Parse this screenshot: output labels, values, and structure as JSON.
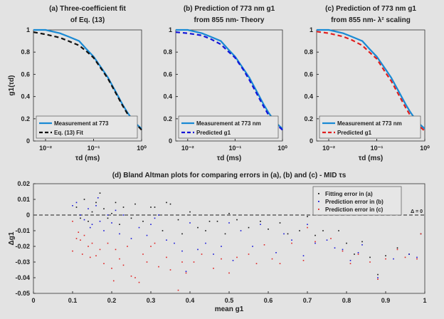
{
  "colors": {
    "measurement": "#1a8ad4",
    "fit": "#111111",
    "predicted_b": "#1414d8",
    "predicted_c": "#e02020",
    "zero_line": "#444444"
  },
  "chart_data": [
    {
      "type": "line",
      "title": [
        "(a) Three-coefficient fit",
        "of Eq. (13)"
      ],
      "xlabel": "τd (ms)",
      "ylabel": "g1(τd)",
      "xscale": "log",
      "xlim": [
        0.0056,
        1
      ],
      "ylim": [
        0,
        1
      ],
      "xticks": [
        {
          "v": 0.01,
          "label": "10⁻²"
        },
        {
          "v": 0.1,
          "label": "10⁻¹"
        },
        {
          "v": 1,
          "label": "10⁰"
        }
      ],
      "yticks": [
        {
          "v": 0,
          "label": "0"
        },
        {
          "v": 0.2,
          "label": "0.2"
        },
        {
          "v": 0.4,
          "label": "0.4"
        },
        {
          "v": 0.6,
          "label": "0.6"
        },
        {
          "v": 0.8,
          "label": "0.8"
        },
        {
          "v": 1,
          "label": "1"
        }
      ],
      "legend": "bottom-left",
      "x": [
        0.0056,
        0.01,
        0.02,
        0.03,
        0.05,
        0.07,
        0.1,
        0.15,
        0.2,
        0.3,
        0.4,
        0.5,
        0.7,
        1
      ],
      "series": [
        {
          "name": "Measurement at 773",
          "style": "solid",
          "color": "#1a8ad4",
          "values": [
            1,
            1,
            0.97,
            0.94,
            0.9,
            0.83,
            0.76,
            0.65,
            0.57,
            0.43,
            0.33,
            0.26,
            0.17,
            0.11
          ]
        },
        {
          "name": "Eq. (13) Fit",
          "style": "dashed",
          "color": "#111111",
          "values": [
            0.98,
            0.96,
            0.93,
            0.9,
            0.86,
            0.81,
            0.75,
            0.64,
            0.56,
            0.42,
            0.32,
            0.25,
            0.17,
            0.1
          ]
        }
      ]
    },
    {
      "type": "line",
      "title": [
        "(b) Prediction of 773 nm g1",
        "from 855 nm- Theory"
      ],
      "xlabel": "τd (ms)",
      "ylabel": "",
      "xscale": "log",
      "xlim": [
        0.0056,
        1
      ],
      "ylim": [
        0,
        1
      ],
      "xticks": [
        {
          "v": 0.01,
          "label": "10⁻²"
        },
        {
          "v": 0.1,
          "label": "10⁻¹"
        },
        {
          "v": 1,
          "label": "10⁰"
        }
      ],
      "yticks": [
        {
          "v": 0,
          "label": "0"
        },
        {
          "v": 0.2,
          "label": "0.2"
        },
        {
          "v": 0.4,
          "label": "0.4"
        },
        {
          "v": 0.6,
          "label": "0.6"
        },
        {
          "v": 0.8,
          "label": "0.8"
        },
        {
          "v": 1,
          "label": "1"
        }
      ],
      "legend": "bottom-left",
      "x": [
        0.0056,
        0.01,
        0.02,
        0.03,
        0.05,
        0.07,
        0.1,
        0.15,
        0.2,
        0.3,
        0.4,
        0.5,
        0.7,
        1
      ],
      "series": [
        {
          "name": "Measurement at 773 nm",
          "style": "solid",
          "color": "#1a8ad4",
          "values": [
            1,
            1,
            0.97,
            0.94,
            0.9,
            0.83,
            0.76,
            0.65,
            0.57,
            0.43,
            0.33,
            0.26,
            0.17,
            0.11
          ]
        },
        {
          "name": "Predicted g1",
          "style": "dashed",
          "color": "#1414d8",
          "values": [
            0.98,
            0.97,
            0.95,
            0.92,
            0.87,
            0.81,
            0.75,
            0.64,
            0.55,
            0.41,
            0.31,
            0.24,
            0.16,
            0.1
          ]
        }
      ]
    },
    {
      "type": "line",
      "title": [
        "(c) Prediction of 773 nm g1",
        "from 855 nm- λ² scaling"
      ],
      "xlabel": "τd (ms)",
      "ylabel": "",
      "xscale": "log",
      "xlim": [
        0.0056,
        1
      ],
      "ylim": [
        0,
        1
      ],
      "xticks": [
        {
          "v": 0.01,
          "label": "10⁻²"
        },
        {
          "v": 0.1,
          "label": "10⁻¹"
        },
        {
          "v": 1,
          "label": "10⁰"
        }
      ],
      "yticks": [
        {
          "v": 0,
          "label": "0"
        },
        {
          "v": 0.2,
          "label": "0.2"
        },
        {
          "v": 0.4,
          "label": "0.4"
        },
        {
          "v": 0.6,
          "label": "0.6"
        },
        {
          "v": 0.8,
          "label": "0.8"
        },
        {
          "v": 1,
          "label": "1"
        }
      ],
      "legend": "bottom-left",
      "x": [
        0.0056,
        0.01,
        0.02,
        0.03,
        0.05,
        0.07,
        0.1,
        0.15,
        0.2,
        0.3,
        0.4,
        0.5,
        0.7,
        1
      ],
      "series": [
        {
          "name": "Measurement at 773 nm",
          "style": "solid",
          "color": "#1a8ad4",
          "values": [
            1,
            1,
            0.97,
            0.94,
            0.9,
            0.83,
            0.76,
            0.65,
            0.57,
            0.43,
            0.33,
            0.26,
            0.17,
            0.11
          ]
        },
        {
          "name": "Predicted g1",
          "style": "dashed",
          "color": "#e02020",
          "values": [
            0.985,
            0.97,
            0.94,
            0.91,
            0.86,
            0.8,
            0.74,
            0.62,
            0.54,
            0.4,
            0.3,
            0.23,
            0.15,
            0.09
          ]
        }
      ]
    },
    {
      "type": "scatter",
      "title": [
        "(d) Bland Altman plots for comparing errors in (a), (b) and (c) - MID τs"
      ],
      "xlabel": "mean g1",
      "ylabel": "Δg1",
      "xlim": [
        0,
        1
      ],
      "ylim": [
        -0.05,
        0.02
      ],
      "xticks": [
        {
          "v": 0,
          "label": "0"
        },
        {
          "v": 0.1,
          "label": "0.1"
        },
        {
          "v": 0.2,
          "label": "0.2"
        },
        {
          "v": 0.3,
          "label": "0.3"
        },
        {
          "v": 0.4,
          "label": "0.4"
        },
        {
          "v": 0.5,
          "label": "0.5"
        },
        {
          "v": 0.6,
          "label": "0.6"
        },
        {
          "v": 0.7,
          "label": "0.7"
        },
        {
          "v": 0.8,
          "label": "0.8"
        },
        {
          "v": 0.9,
          "label": "0.9"
        },
        {
          "v": 1,
          "label": "1"
        }
      ],
      "yticks": [
        {
          "v": -0.05,
          "label": "-0.05"
        },
        {
          "v": -0.04,
          "label": "-0.04"
        },
        {
          "v": -0.03,
          "label": "-0.03"
        },
        {
          "v": -0.02,
          "label": "-0.02"
        },
        {
          "v": -0.01,
          "label": "-0.01"
        },
        {
          "v": 0,
          "label": "0"
        },
        {
          "v": 0.01,
          "label": "0.01"
        },
        {
          "v": 0.02,
          "label": "0.02"
        }
      ],
      "legend": "top-right",
      "reference_line": {
        "y": 0,
        "label": "Δ = 0"
      },
      "series": [
        {
          "name": "Fitting error in (a)",
          "color": "#111111",
          "points": [
            [
              0.11,
              0.005
            ],
            [
              0.12,
              -0.002
            ],
            [
              0.13,
              0.01
            ],
            [
              0.14,
              -0.004
            ],
            [
              0.15,
              0.002
            ],
            [
              0.16,
              0.008
            ],
            [
              0.17,
              0.014
            ],
            [
              0.18,
              0.004
            ],
            [
              0.19,
              -0.002
            ],
            [
              0.2,
              0.001
            ],
            [
              0.21,
              0.008
            ],
            [
              0.22,
              -0.006
            ],
            [
              0.23,
              0.005
            ],
            [
              0.25,
              -0.002
            ],
            [
              0.26,
              0.007
            ],
            [
              0.28,
              -0.004
            ],
            [
              0.3,
              0.005
            ],
            [
              0.31,
              0.005
            ],
            [
              0.33,
              -0.01
            ],
            [
              0.34,
              0.008
            ],
            [
              0.35,
              0.007
            ],
            [
              0.37,
              -0.003
            ],
            [
              0.38,
              -0.012
            ],
            [
              0.4,
              0.002
            ],
            [
              0.42,
              -0.008
            ],
            [
              0.44,
              -0.01
            ],
            [
              0.45,
              -0.004
            ],
            [
              0.47,
              -0.004
            ],
            [
              0.49,
              -0.012
            ],
            [
              0.5,
              0.001
            ],
            [
              0.52,
              -0.003
            ],
            [
              0.55,
              -0.008
            ],
            [
              0.58,
              -0.004
            ],
            [
              0.6,
              -0.009
            ],
            [
              0.63,
              -0.005
            ],
            [
              0.65,
              -0.012
            ],
            [
              0.68,
              -0.01
            ],
            [
              0.7,
              -0.001
            ],
            [
              0.72,
              -0.013
            ],
            [
              0.74,
              -0.01
            ],
            [
              0.78,
              -0.01
            ],
            [
              0.8,
              -0.018
            ],
            [
              0.82,
              -0.025
            ],
            [
              0.84,
              -0.017
            ],
            [
              0.86,
              -0.027
            ],
            [
              0.88,
              -0.038
            ],
            [
              0.9,
              -0.026
            ],
            [
              0.93,
              -0.021
            ],
            [
              0.96,
              -0.025
            ],
            [
              0.99,
              -0.012
            ]
          ]
        },
        {
          "name": "Prediction error in (b)",
          "color": "#1414d8",
          "points": [
            [
              0.1,
              0.006
            ],
            [
              0.11,
              0.008
            ],
            [
              0.12,
              0.0
            ],
            [
              0.13,
              -0.003
            ],
            [
              0.14,
              0.004
            ],
            [
              0.145,
              -0.008
            ],
            [
              0.15,
              -0.006
            ],
            [
              0.16,
              0.006
            ],
            [
              0.165,
              0.011
            ],
            [
              0.17,
              -0.004
            ],
            [
              0.18,
              -0.01
            ],
            [
              0.19,
              0.0
            ],
            [
              0.2,
              -0.005
            ],
            [
              0.21,
              0.003
            ],
            [
              0.22,
              -0.012
            ],
            [
              0.23,
              0.0
            ],
            [
              0.25,
              -0.015
            ],
            [
              0.27,
              -0.008
            ],
            [
              0.29,
              -0.013
            ],
            [
              0.3,
              -0.006
            ],
            [
              0.31,
              -0.002
            ],
            [
              0.32,
              0.0
            ],
            [
              0.34,
              -0.016
            ],
            [
              0.36,
              -0.018
            ],
            [
              0.38,
              -0.023
            ],
            [
              0.39,
              -0.036
            ],
            [
              0.4,
              -0.005
            ],
            [
              0.42,
              -0.022
            ],
            [
              0.44,
              -0.018
            ],
            [
              0.46,
              -0.025
            ],
            [
              0.48,
              -0.02
            ],
            [
              0.5,
              -0.005
            ],
            [
              0.51,
              -0.029
            ],
            [
              0.53,
              -0.01
            ],
            [
              0.56,
              -0.02
            ],
            [
              0.58,
              -0.006
            ],
            [
              0.62,
              -0.024
            ],
            [
              0.64,
              -0.012
            ],
            [
              0.66,
              -0.016
            ],
            [
              0.69,
              -0.026
            ],
            [
              0.7,
              -0.006
            ],
            [
              0.72,
              -0.018
            ],
            [
              0.75,
              -0.016
            ],
            [
              0.77,
              -0.021
            ],
            [
              0.79,
              -0.022
            ],
            [
              0.81,
              -0.029
            ],
            [
              0.83,
              -0.024
            ],
            [
              0.84,
              -0.019
            ],
            [
              0.88,
              -0.04
            ],
            [
              0.92,
              -0.028
            ],
            [
              0.96,
              -0.025
            ],
            [
              0.98,
              -0.027
            ]
          ]
        },
        {
          "name": "Prediction error in (c)",
          "color": "#e02020",
          "points": [
            [
              0.1,
              -0.004
            ],
            [
              0.1,
              -0.023
            ],
            [
              0.11,
              -0.015
            ],
            [
              0.115,
              -0.011
            ],
            [
              0.12,
              -0.016
            ],
            [
              0.125,
              -0.025
            ],
            [
              0.13,
              -0.013
            ],
            [
              0.14,
              -0.02
            ],
            [
              0.145,
              -0.027
            ],
            [
              0.15,
              -0.018
            ],
            [
              0.16,
              -0.026
            ],
            [
              0.17,
              -0.022
            ],
            [
              0.18,
              -0.031
            ],
            [
              0.19,
              -0.018
            ],
            [
              0.2,
              -0.034
            ],
            [
              0.205,
              -0.042
            ],
            [
              0.21,
              -0.022
            ],
            [
              0.22,
              -0.028
            ],
            [
              0.23,
              -0.032
            ],
            [
              0.24,
              -0.02
            ],
            [
              0.25,
              -0.039
            ],
            [
              0.26,
              -0.04
            ],
            [
              0.27,
              -0.043
            ],
            [
              0.28,
              -0.025
            ],
            [
              0.29,
              -0.03
            ],
            [
              0.3,
              -0.02
            ],
            [
              0.31,
              -0.018
            ],
            [
              0.32,
              -0.033
            ],
            [
              0.34,
              -0.027
            ],
            [
              0.35,
              -0.035
            ],
            [
              0.37,
              -0.048
            ],
            [
              0.38,
              -0.03
            ],
            [
              0.39,
              -0.037
            ],
            [
              0.41,
              -0.03
            ],
            [
              0.43,
              -0.025
            ],
            [
              0.46,
              -0.034
            ],
            [
              0.48,
              -0.028
            ],
            [
              0.5,
              -0.037
            ],
            [
              0.52,
              -0.027
            ],
            [
              0.55,
              -0.025
            ],
            [
              0.57,
              -0.031
            ],
            [
              0.59,
              -0.019
            ],
            [
              0.61,
              -0.028
            ],
            [
              0.63,
              -0.031
            ],
            [
              0.66,
              -0.018
            ],
            [
              0.69,
              -0.029
            ],
            [
              0.7,
              -0.008
            ],
            [
              0.72,
              -0.017
            ],
            [
              0.76,
              -0.015
            ],
            [
              0.79,
              -0.023
            ],
            [
              0.81,
              -0.031
            ],
            [
              0.83,
              -0.025
            ],
            [
              0.86,
              -0.03
            ],
            [
              0.88,
              -0.041
            ],
            [
              0.9,
              -0.028
            ],
            [
              0.93,
              -0.022
            ],
            [
              0.95,
              -0.027
            ],
            [
              0.98,
              -0.028
            ],
            [
              0.99,
              -0.012
            ]
          ]
        }
      ]
    }
  ]
}
